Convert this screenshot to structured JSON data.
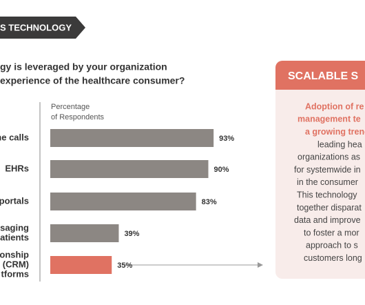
{
  "banner": "S TECHNOLOGY",
  "question": [
    "gy is leveraged by your organization",
    "experience of the healthcare consumer?"
  ],
  "chart_data": {
    "type": "hbar",
    "axis_label": [
      "Percentage",
      "of Respondents"
    ],
    "categories": [
      [
        "ne calls"
      ],
      [
        "EHRs"
      ],
      [
        "portals"
      ],
      [
        "saging",
        "atients"
      ],
      [
        "onship",
        "(CRM)",
        "tforms"
      ]
    ],
    "values": [
      93,
      90,
      83,
      39,
      35
    ],
    "value_labels": [
      "93%",
      "90%",
      "83%",
      "39%",
      "35%"
    ],
    "colors": [
      "#8c8783",
      "#8c8783",
      "#8c8783",
      "#8c8783",
      "#e07262"
    ],
    "xlim": [
      0,
      100
    ]
  },
  "panel": {
    "title": "SCALABLE S",
    "highlight": [
      "Adoption of re",
      "management te",
      "a growing trenc"
    ],
    "lines": [
      "leading hea",
      "organizations as",
      "for systemwide in",
      "in the consumer",
      "This technology",
      "together disparat",
      "data and improve",
      "to foster a mor",
      "approach to s",
      "customers long"
    ]
  }
}
